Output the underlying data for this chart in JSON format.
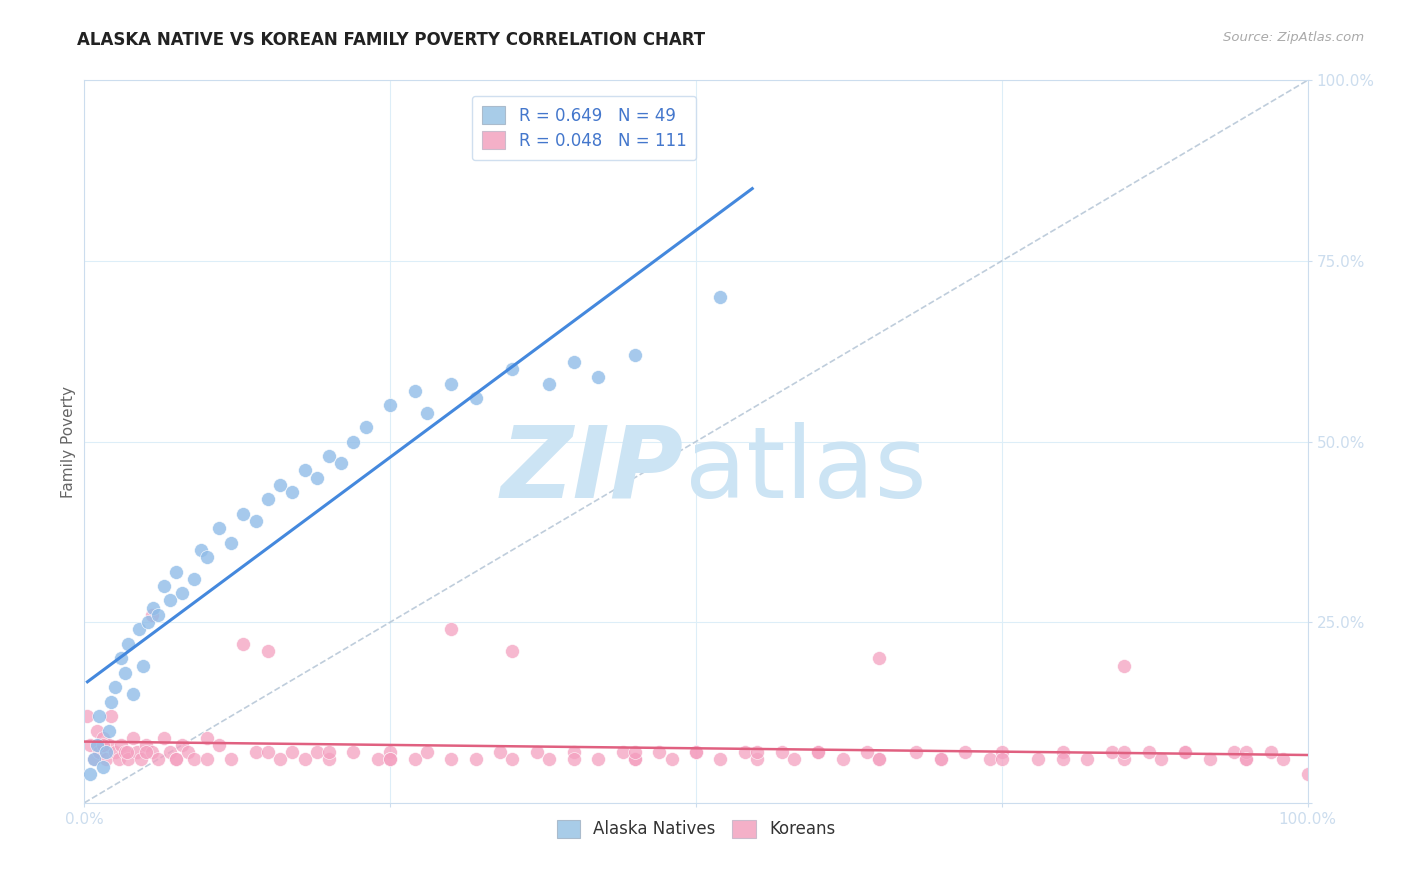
{
  "title": "ALASKA NATIVE VS KOREAN FAMILY POVERTY CORRELATION CHART",
  "source": "Source: ZipAtlas.com",
  "ylabel": "Family Poverty",
  "alaska_color": "#90bce8",
  "alaska_edge_color": "#ffffff",
  "korean_color": "#f4a0c0",
  "korean_edge_color": "#ffffff",
  "alaska_line_color": "#4488dd",
  "korean_line_color": "#e06080",
  "diagonal_color": "#b8c8d8",
  "watermark_zip": "ZIP",
  "watermark_atlas": "atlas",
  "watermark_color": "#cce4f4",
  "background_color": "#ffffff",
  "grid_color": "#ddeef8",
  "axis_tick_color": "#66aadd",
  "legend_label_color": "#4477cc",
  "legend1_label1": "R = 0.649   N = 49",
  "legend1_label2": "R = 0.048   N = 111",
  "legend1_color1": "#a8cce8",
  "legend1_color2": "#f4b0c8",
  "legend2_label1": "Alaska Natives",
  "legend2_label2": "Koreans",
  "alaska_x": [
    0.005,
    0.008,
    0.01,
    0.012,
    0.015,
    0.018,
    0.02,
    0.022,
    0.025,
    0.03,
    0.033,
    0.036,
    0.04,
    0.045,
    0.048,
    0.052,
    0.056,
    0.06,
    0.065,
    0.07,
    0.075,
    0.08,
    0.09,
    0.095,
    0.1,
    0.11,
    0.12,
    0.13,
    0.14,
    0.15,
    0.16,
    0.17,
    0.18,
    0.19,
    0.2,
    0.21,
    0.22,
    0.23,
    0.25,
    0.27,
    0.28,
    0.3,
    0.32,
    0.35,
    0.38,
    0.4,
    0.42,
    0.45,
    0.52
  ],
  "alaska_y": [
    0.04,
    0.06,
    0.08,
    0.12,
    0.05,
    0.07,
    0.1,
    0.14,
    0.16,
    0.2,
    0.18,
    0.22,
    0.15,
    0.24,
    0.19,
    0.25,
    0.27,
    0.26,
    0.3,
    0.28,
    0.32,
    0.29,
    0.31,
    0.35,
    0.34,
    0.38,
    0.36,
    0.4,
    0.39,
    0.42,
    0.44,
    0.43,
    0.46,
    0.45,
    0.48,
    0.47,
    0.5,
    0.52,
    0.55,
    0.57,
    0.54,
    0.58,
    0.56,
    0.6,
    0.58,
    0.61,
    0.59,
    0.62,
    0.7
  ],
  "korean_x": [
    0.002,
    0.005,
    0.008,
    0.01,
    0.012,
    0.015,
    0.018,
    0.02,
    0.022,
    0.025,
    0.028,
    0.03,
    0.033,
    0.036,
    0.04,
    0.043,
    0.046,
    0.05,
    0.055,
    0.06,
    0.065,
    0.07,
    0.075,
    0.08,
    0.085,
    0.09,
    0.1,
    0.11,
    0.12,
    0.13,
    0.14,
    0.15,
    0.16,
    0.17,
    0.18,
    0.19,
    0.2,
    0.22,
    0.24,
    0.25,
    0.27,
    0.28,
    0.3,
    0.32,
    0.34,
    0.35,
    0.37,
    0.38,
    0.4,
    0.42,
    0.44,
    0.45,
    0.47,
    0.48,
    0.5,
    0.52,
    0.54,
    0.55,
    0.57,
    0.58,
    0.6,
    0.62,
    0.64,
    0.65,
    0.68,
    0.7,
    0.72,
    0.74,
    0.75,
    0.78,
    0.8,
    0.82,
    0.84,
    0.85,
    0.87,
    0.88,
    0.9,
    0.92,
    0.94,
    0.95,
    0.97,
    0.98,
    1.0,
    0.015,
    0.035,
    0.055,
    0.075,
    0.15,
    0.25,
    0.35,
    0.45,
    0.55,
    0.65,
    0.75,
    0.85,
    0.95,
    0.3,
    0.5,
    0.7,
    0.9,
    0.1,
    0.2,
    0.4,
    0.6,
    0.8,
    0.05,
    0.25,
    0.45,
    0.65,
    0.85,
    0.95
  ],
  "korean_y": [
    0.12,
    0.08,
    0.06,
    0.1,
    0.07,
    0.09,
    0.06,
    0.08,
    0.12,
    0.07,
    0.06,
    0.08,
    0.07,
    0.06,
    0.09,
    0.07,
    0.06,
    0.08,
    0.07,
    0.06,
    0.09,
    0.07,
    0.06,
    0.08,
    0.07,
    0.06,
    0.09,
    0.08,
    0.06,
    0.22,
    0.07,
    0.21,
    0.06,
    0.07,
    0.06,
    0.07,
    0.06,
    0.07,
    0.06,
    0.07,
    0.06,
    0.07,
    0.24,
    0.06,
    0.07,
    0.06,
    0.07,
    0.06,
    0.07,
    0.06,
    0.07,
    0.06,
    0.07,
    0.06,
    0.07,
    0.06,
    0.07,
    0.06,
    0.07,
    0.06,
    0.07,
    0.06,
    0.07,
    0.06,
    0.07,
    0.06,
    0.07,
    0.06,
    0.07,
    0.06,
    0.07,
    0.06,
    0.07,
    0.06,
    0.07,
    0.06,
    0.07,
    0.06,
    0.07,
    0.06,
    0.07,
    0.06,
    0.04,
    0.08,
    0.07,
    0.26,
    0.06,
    0.07,
    0.06,
    0.21,
    0.06,
    0.07,
    0.2,
    0.06,
    0.19,
    0.07,
    0.06,
    0.07,
    0.06,
    0.07,
    0.06,
    0.07,
    0.06,
    0.07,
    0.06,
    0.07,
    0.06,
    0.07,
    0.06,
    0.07,
    0.06
  ],
  "xlim": [
    0,
    1.0
  ],
  "ylim": [
    0,
    1.0
  ],
  "xticks": [
    0,
    0.25,
    0.5,
    0.75,
    1.0
  ],
  "yticks": [
    0,
    0.25,
    0.5,
    0.75,
    1.0
  ],
  "xtick_labels_show": [
    "0.0%",
    "",
    "",
    "",
    "100.0%"
  ],
  "ytick_labels_show": [
    "",
    "25.0%",
    "50.0%",
    "75.0%",
    "100.0%"
  ]
}
